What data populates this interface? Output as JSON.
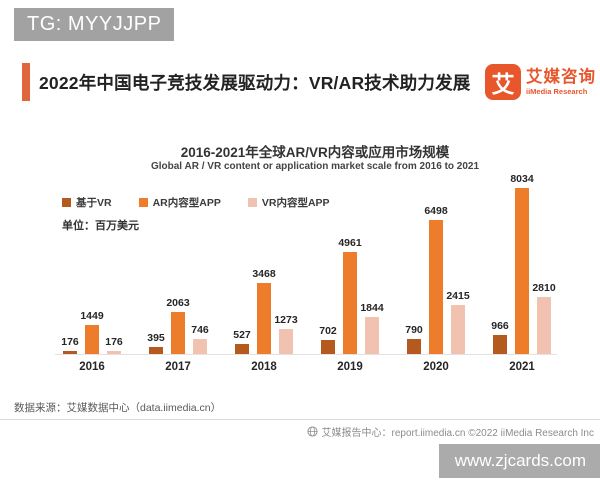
{
  "watermark_top": "TG: MYYJJPP",
  "watermark_bottom": "www.zjcards.com",
  "header": {
    "title": "2022年中国电子竞技发展驱动力：VR/AR技术助力发展",
    "logo": {
      "glyph": "艾",
      "name_cn": "艾媒咨询",
      "name_en": "iiMedia Research"
    }
  },
  "chart_data": {
    "type": "bar",
    "title": "2016-2021年全球AR/VR内容或应用市场规模",
    "subtitle": "Global AR / VR content or application market scale from 2016 to 2021",
    "unit_label": "单位：百万美元",
    "xlabel": "",
    "ylabel": "百万美元",
    "categories": [
      "2016",
      "2017",
      "2018",
      "2019",
      "2020",
      "2021"
    ],
    "series": [
      {
        "name": "基于VR",
        "color": "#b55a1f",
        "values": [
          176,
          395,
          527,
          702,
          790,
          966
        ]
      },
      {
        "name": "AR内容型APP",
        "color": "#ed7d2b",
        "values": [
          1449,
          2063,
          3468,
          4961,
          6498,
          8034
        ]
      },
      {
        "name": "VR内容型APP",
        "color": "#f1c2b0",
        "values": [
          176,
          746,
          1273,
          1844,
          2415,
          2810
        ]
      }
    ],
    "ylim": [
      0,
      8034
    ],
    "grid": false,
    "legend_position": "top-left"
  },
  "source_note": "数据来源：艾媒数据中心（data.iimedia.cn）",
  "footer": {
    "text": "艾媒报告中心：report.iimedia.cn  ©2022  iiMedia Research  Inc"
  }
}
